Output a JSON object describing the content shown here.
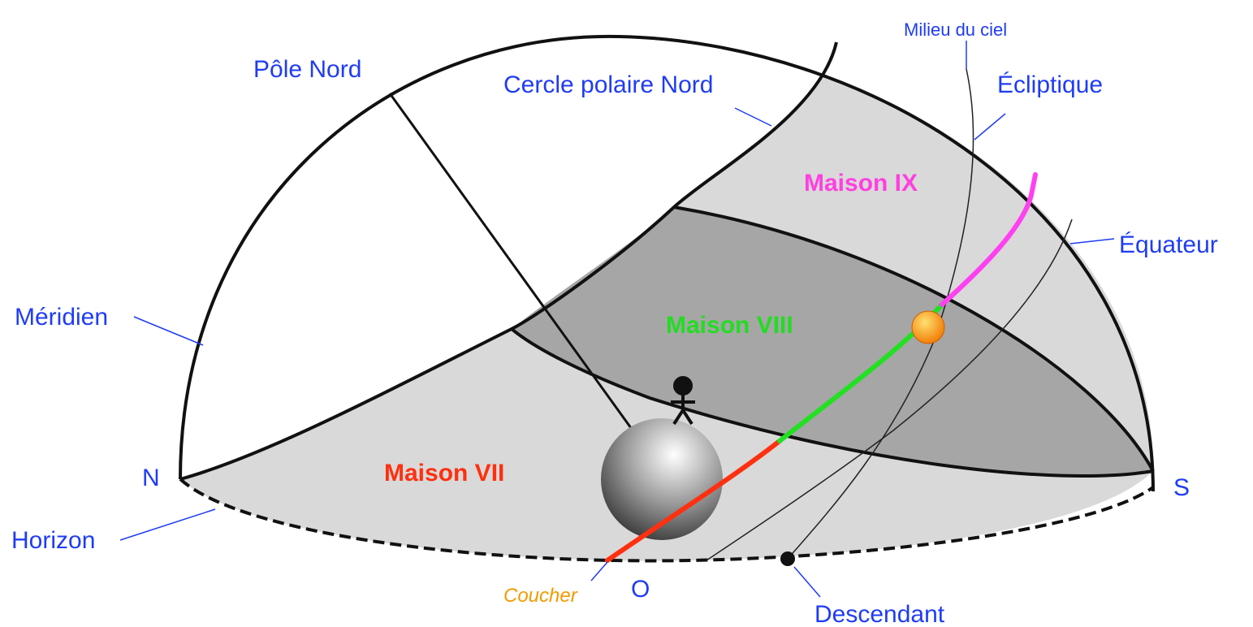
{
  "labels": {
    "pole_nord": "Pôle Nord",
    "cercle_polaire": "Cercle polaire Nord",
    "milieu_du_ciel": "Milieu du ciel",
    "ecliptique": "Écliptique",
    "maison_ix": "Maison IX",
    "equateur": "Équateur",
    "meridien": "Méridien",
    "maison_viii": "Maison VIII",
    "nord": "N",
    "maison_vii": "Maison VII",
    "sud": "S",
    "horizon": "Horizon",
    "coucher": "Coucher",
    "ouest": "O",
    "descendant": "Descendant"
  }
}
